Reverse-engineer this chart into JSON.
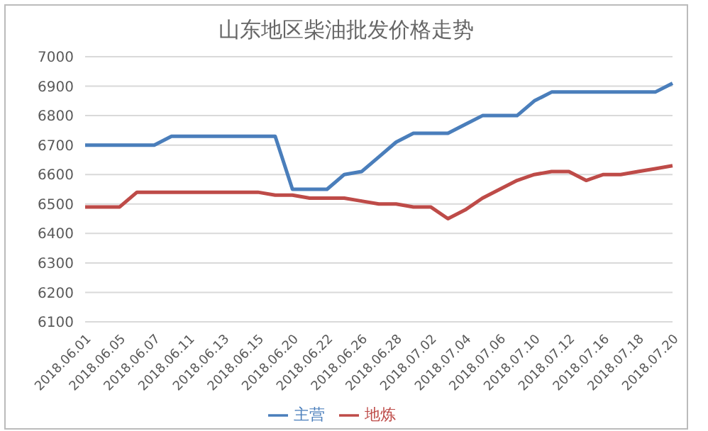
{
  "chart_data": {
    "type": "line",
    "title": "山东地区柴油批发价格走势",
    "categories": [
      "2018.06.01",
      null,
      "2018.06.05",
      null,
      "2018.06.07",
      null,
      "2018.06.11",
      null,
      "2018.06.13",
      null,
      "2018.06.15",
      null,
      "2018.06.20",
      null,
      "2018.06.22",
      null,
      "2018.06.26",
      null,
      "2018.06.28",
      null,
      "2018.07.02",
      null,
      "2018.07.04",
      null,
      "2018.07.06",
      null,
      "2018.07.10",
      null,
      "2018.07.12",
      null,
      "2018.07.16",
      null,
      "2018.07.18",
      null,
      "2018.07.20"
    ],
    "series": [
      {
        "name": "主营",
        "color": "#4a7ebb",
        "values": [
          6700,
          6700,
          6700,
          6700,
          6700,
          6730,
          6730,
          6730,
          6730,
          6730,
          6730,
          6730,
          6550,
          6550,
          6550,
          6600,
          6610,
          6660,
          6710,
          6740,
          6740,
          6740,
          6770,
          6800,
          6800,
          6800,
          6850,
          6880,
          6880,
          6880,
          6880,
          6880,
          6880,
          6880,
          6910
        ]
      },
      {
        "name": "地炼",
        "color": "#be4b48",
        "values": [
          6490,
          6490,
          6490,
          6540,
          6540,
          6540,
          6540,
          6540,
          6540,
          6540,
          6540,
          6530,
          6530,
          6520,
          6520,
          6520,
          6510,
          6500,
          6500,
          6490,
          6490,
          6450,
          6480,
          6520,
          6550,
          6580,
          6600,
          6610,
          6610,
          6580,
          6600,
          6600,
          6610,
          6620,
          6630
        ]
      }
    ],
    "ylim": [
      6100,
      7000
    ],
    "yticks": [
      6100,
      6200,
      6300,
      6400,
      6500,
      6600,
      6700,
      6800,
      6900,
      7000
    ],
    "grid": "y",
    "legend": "bottom",
    "marker": "none",
    "line_style": "solid"
  }
}
